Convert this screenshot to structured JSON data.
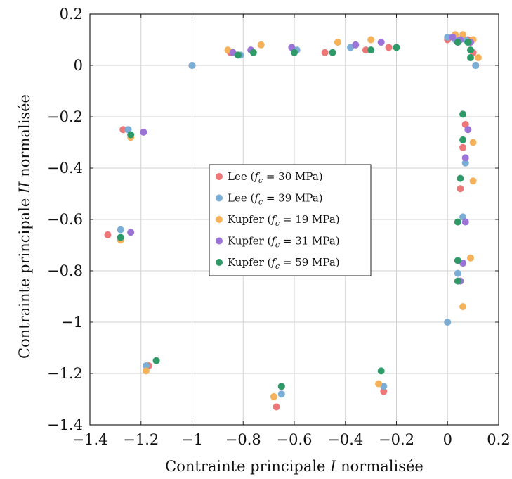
{
  "chart_data": {
    "type": "scatter",
    "title": "",
    "xlabel": "Contrainte principale I normalisée",
    "ylabel": "Contrainte principale II normalisée",
    "xlabel_parts": {
      "before": "Contrainte principale ",
      "var": "I",
      "after": " normalisée"
    },
    "ylabel_parts": {
      "before": "Contrainte principale ",
      "var": "II",
      "after": " normalisée"
    },
    "xlim": [
      -1.4,
      0.2
    ],
    "ylim": [
      -1.4,
      0.2
    ],
    "xticks": [
      -1.4,
      -1.2,
      -1,
      -0.8,
      -0.6,
      -0.4,
      -0.2,
      0,
      0.2
    ],
    "yticks": [
      -1.4,
      -1.2,
      -1,
      -0.8,
      -0.6,
      -0.4,
      -0.2,
      0,
      0.2
    ],
    "xtick_labels": [
      "−1.4",
      "−1.2",
      "−1",
      "−0.8",
      "−0.6",
      "−0.4",
      "−0.2",
      "0",
      "0.2"
    ],
    "ytick_labels": [
      "−1.4",
      "−1.2",
      "−1",
      "−0.8",
      "−0.6",
      "−0.4",
      "−0.2",
      "0",
      "0.2"
    ],
    "grid": true,
    "legend_position": "center",
    "series": [
      {
        "name": "Lee (fc = 30 MPa)",
        "legend": {
          "prefix": "Lee (",
          "sub": "c",
          "suffix": " = 30 MPa)"
        },
        "color": "#ee7777",
        "points": [
          [
            -1.0,
            0.0
          ],
          [
            -0.85,
            0.05
          ],
          [
            -0.48,
            0.05
          ],
          [
            -0.32,
            0.06
          ],
          [
            -0.23,
            0.07
          ],
          [
            0.0,
            0.1
          ],
          [
            0.04,
            0.1
          ],
          [
            0.08,
            0.1
          ],
          [
            0.1,
            0.05
          ],
          [
            0.11,
            0.0
          ],
          [
            -1.27,
            -0.25
          ],
          [
            -1.33,
            -0.66
          ],
          [
            -1.17,
            -1.17
          ],
          [
            -0.67,
            -1.33
          ],
          [
            -0.25,
            -1.27
          ],
          [
            0.07,
            -0.23
          ],
          [
            0.06,
            -0.32
          ],
          [
            0.05,
            -0.48
          ]
        ]
      },
      {
        "name": "Lee (fc = 39 MPa)",
        "legend": {
          "prefix": "Lee (",
          "sub": "c",
          "suffix": " = 39 MPa)"
        },
        "color": "#7aaed6",
        "points": [
          [
            -1.0,
            0.0
          ],
          [
            -0.81,
            0.04
          ],
          [
            -0.59,
            0.06
          ],
          [
            -0.38,
            0.07
          ],
          [
            0.0,
            0.11
          ],
          [
            0.03,
            0.1
          ],
          [
            0.07,
            0.1
          ],
          [
            0.11,
            0.0
          ],
          [
            -1.25,
            -0.25
          ],
          [
            -1.28,
            -0.64
          ],
          [
            -1.18,
            -1.17
          ],
          [
            -0.65,
            -1.28
          ],
          [
            -0.25,
            -1.25
          ],
          [
            0.0,
            -1.0
          ],
          [
            0.07,
            -0.38
          ],
          [
            0.06,
            -0.59
          ],
          [
            0.04,
            -0.81
          ]
        ]
      },
      {
        "name": "Kupfer (fc = 19 MPa)",
        "legend": {
          "prefix": "Kupfer (",
          "sub": "c",
          "suffix": " = 19 MPa)"
        },
        "color": "#f5b25a",
        "points": [
          [
            -0.86,
            0.06
          ],
          [
            -0.73,
            0.08
          ],
          [
            -0.43,
            0.09
          ],
          [
            -0.3,
            0.1
          ],
          [
            0.03,
            0.12
          ],
          [
            0.06,
            0.12
          ],
          [
            0.1,
            0.1
          ],
          [
            0.12,
            0.03
          ],
          [
            -1.24,
            -0.28
          ],
          [
            -1.28,
            -0.68
          ],
          [
            -1.18,
            -1.19
          ],
          [
            -0.68,
            -1.29
          ],
          [
            -0.27,
            -1.24
          ],
          [
            0.1,
            -0.3
          ],
          [
            0.1,
            -0.45
          ],
          [
            0.09,
            -0.75
          ],
          [
            0.06,
            -0.94
          ]
        ]
      },
      {
        "name": "Kupfer (fc = 31 MPa)",
        "legend": {
          "prefix": "Kupfer (",
          "sub": "c",
          "suffix": " = 31 MPa)"
        },
        "color": "#9a74d6",
        "points": [
          [
            -0.84,
            0.05
          ],
          [
            -0.77,
            0.06
          ],
          [
            -0.61,
            0.07
          ],
          [
            -0.36,
            0.08
          ],
          [
            -0.26,
            0.09
          ],
          [
            0.02,
            0.11
          ],
          [
            0.05,
            0.1
          ],
          [
            0.09,
            0.09
          ],
          [
            -1.19,
            -0.26
          ],
          [
            -1.24,
            -0.65
          ],
          [
            -0.65,
            -1.25
          ],
          [
            0.08,
            -0.25
          ],
          [
            0.07,
            -0.36
          ],
          [
            0.07,
            -0.61
          ],
          [
            0.06,
            -0.77
          ],
          [
            0.05,
            -0.84
          ]
        ]
      },
      {
        "name": "Kupfer (fc = 59 MPa)",
        "legend": {
          "prefix": "Kupfer (",
          "sub": "c",
          "suffix": " = 59 MPa)"
        },
        "color": "#2e9a68",
        "points": [
          [
            -0.82,
            0.04
          ],
          [
            -0.76,
            0.05
          ],
          [
            -0.6,
            0.05
          ],
          [
            -0.45,
            0.05
          ],
          [
            -0.3,
            0.06
          ],
          [
            -0.2,
            0.07
          ],
          [
            0.04,
            0.09
          ],
          [
            0.08,
            0.09
          ],
          [
            0.09,
            0.06
          ],
          [
            0.09,
            0.03
          ],
          [
            -1.24,
            -0.27
          ],
          [
            -1.28,
            -0.67
          ],
          [
            -1.14,
            -1.15
          ],
          [
            -0.65,
            -1.25
          ],
          [
            -0.26,
            -1.19
          ],
          [
            0.06,
            -0.19
          ],
          [
            0.06,
            -0.29
          ],
          [
            0.05,
            -0.44
          ],
          [
            0.04,
            -0.61
          ],
          [
            0.04,
            -0.76
          ],
          [
            0.04,
            -0.84
          ]
        ]
      }
    ]
  }
}
